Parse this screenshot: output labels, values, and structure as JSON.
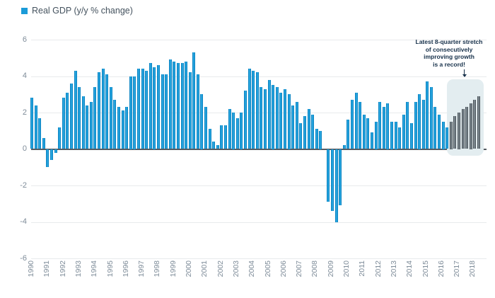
{
  "legend": {
    "label": "Real GDP (y/y % change)",
    "marker_color": "#1b9bd8"
  },
  "annotation": {
    "text": "Latest 8-quarter stretch\nof consecutively\nimproving growth\nis a record!"
  },
  "chart_data": {
    "type": "bar",
    "title": "Real GDP (y/y % change)",
    "x_start": "1990-Q1",
    "x_end": "2018-Q2",
    "x_years": [
      1990,
      1991,
      1992,
      1993,
      1994,
      1995,
      1996,
      1997,
      1998,
      1999,
      2000,
      2001,
      2002,
      2003,
      2004,
      2005,
      2006,
      2007,
      2008,
      2009,
      2010,
      2011,
      2012,
      2013,
      2014,
      2015,
      2016,
      2017,
      2018
    ],
    "values": [
      2.8,
      2.4,
      1.7,
      0.6,
      -1.0,
      -0.6,
      -0.2,
      1.2,
      2.8,
      3.1,
      3.6,
      4.3,
      3.4,
      2.9,
      2.4,
      2.6,
      3.4,
      4.2,
      4.4,
      4.1,
      3.4,
      2.7,
      2.3,
      2.1,
      2.3,
      4.0,
      4.0,
      4.4,
      4.4,
      4.3,
      4.7,
      4.5,
      4.6,
      4.1,
      4.1,
      4.9,
      4.8,
      4.7,
      4.7,
      4.8,
      4.2,
      5.3,
      4.1,
      3.0,
      2.3,
      1.1,
      0.4,
      0.2,
      1.3,
      1.3,
      2.2,
      2.0,
      1.7,
      2.0,
      3.2,
      4.4,
      4.3,
      4.2,
      3.4,
      3.3,
      3.8,
      3.5,
      3.4,
      3.1,
      3.3,
      3.0,
      2.4,
      2.6,
      1.4,
      1.8,
      2.2,
      1.9,
      1.1,
      1.0,
      0.0,
      -2.9,
      -3.4,
      -4.0,
      -3.1,
      0.2,
      1.6,
      2.7,
      3.1,
      2.6,
      1.9,
      1.7,
      0.9,
      1.5,
      2.6,
      2.3,
      2.5,
      1.5,
      1.5,
      1.2,
      1.9,
      2.6,
      1.4,
      2.6,
      3.0,
      2.7,
      3.7,
      3.4,
      2.3,
      1.9,
      1.5,
      1.2,
      1.5,
      1.8,
      2.0,
      2.2,
      2.3,
      2.5,
      2.7,
      2.9
    ],
    "highlight_last_n": 8,
    "ylim": [
      -6,
      6
    ],
    "yticks": [
      6,
      4,
      2,
      0,
      -2,
      -4,
      -6
    ],
    "grid": true,
    "legend_position": "top-left",
    "annotation": "Latest 8-quarter stretch of consecutively improving growth is a record!",
    "colors": {
      "bar_fill": "#25a3dd",
      "bar_border": "#0d85c3",
      "highlight_bar_fill": "#79858c",
      "highlight_bar_border": "#4e565c",
      "highlight_box": "#e3edf0",
      "zero_line": "#565c62",
      "grid_line": "#e8eaec",
      "tick_label": "#7e8c99",
      "annotation_text": "#16304a"
    }
  }
}
